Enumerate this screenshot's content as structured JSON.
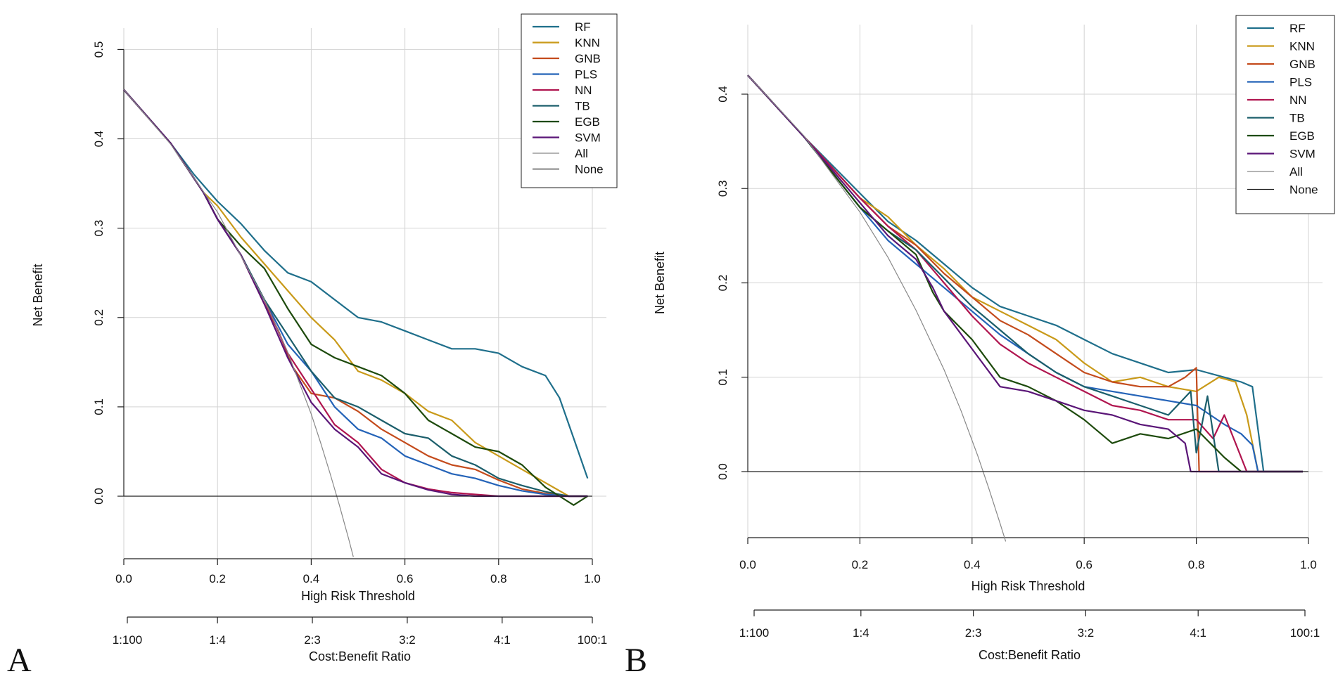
{
  "panels": [
    {
      "id": "A",
      "letter": "A"
    },
    {
      "id": "B",
      "letter": "B"
    }
  ],
  "chart_data": [
    {
      "panel": "A",
      "type": "line",
      "title": "",
      "xlabel": "High Risk Threshold",
      "ylabel": "Net Benefit",
      "xlim": [
        0,
        1
      ],
      "ylim": [
        -0.07,
        0.52
      ],
      "xticks": [
        0.0,
        0.2,
        0.4,
        0.6,
        0.8,
        1.0
      ],
      "xtick_labels": [
        "0.0",
        "0.2",
        "0.4",
        "0.6",
        "0.8",
        "1.0"
      ],
      "yticks": [
        0.0,
        0.1,
        0.2,
        0.3,
        0.4,
        0.5
      ],
      "ytick_labels": [
        "0.0",
        "0.1",
        "0.2",
        "0.3",
        "0.4",
        "0.5"
      ],
      "grid": true,
      "secondary_axis": {
        "label": "Cost:Benefit Ratio",
        "ticks": [
          0.01,
          0.2,
          0.4,
          0.6,
          0.8,
          0.99
        ],
        "tick_labels": [
          "1:100",
          "1:4",
          "2:3",
          "3:2",
          "4:1",
          "100:1"
        ]
      },
      "legend": {
        "position": "top-right",
        "entries": [
          "RF",
          "KNN",
          "GNB",
          "PLS",
          "NN",
          "TB",
          "EGB",
          "SVM",
          "All",
          "None"
        ]
      },
      "series": [
        {
          "name": "RF",
          "color": "#1f6f8b",
          "x": [
            0.0,
            0.1,
            0.15,
            0.2,
            0.25,
            0.3,
            0.35,
            0.4,
            0.45,
            0.5,
            0.55,
            0.6,
            0.65,
            0.7,
            0.75,
            0.8,
            0.85,
            0.9,
            0.93,
            0.96,
            0.99
          ],
          "y": [
            0.455,
            0.395,
            0.36,
            0.33,
            0.305,
            0.275,
            0.25,
            0.24,
            0.22,
            0.2,
            0.195,
            0.185,
            0.175,
            0.165,
            0.165,
            0.16,
            0.145,
            0.135,
            0.11,
            0.065,
            0.02
          ]
        },
        {
          "name": "KNN",
          "color": "#c99a19",
          "x": [
            0.0,
            0.1,
            0.17,
            0.2,
            0.25,
            0.3,
            0.35,
            0.4,
            0.45,
            0.5,
            0.55,
            0.6,
            0.65,
            0.7,
            0.75,
            0.8,
            0.85,
            0.9,
            0.95,
            0.99
          ],
          "y": [
            0.455,
            0.395,
            0.34,
            0.325,
            0.29,
            0.26,
            0.23,
            0.2,
            0.175,
            0.14,
            0.13,
            0.115,
            0.095,
            0.085,
            0.06,
            0.045,
            0.03,
            0.015,
            0.0,
            0.0
          ]
        },
        {
          "name": "GNB",
          "color": "#c44b1c",
          "x": [
            0.0,
            0.1,
            0.17,
            0.2,
            0.25,
            0.3,
            0.33,
            0.36,
            0.4,
            0.45,
            0.5,
            0.55,
            0.6,
            0.65,
            0.7,
            0.75,
            0.8,
            0.85,
            0.9,
            0.95,
            0.99
          ],
          "y": [
            0.455,
            0.395,
            0.34,
            0.31,
            0.27,
            0.215,
            0.185,
            0.145,
            0.115,
            0.11,
            0.095,
            0.075,
            0.06,
            0.045,
            0.035,
            0.03,
            0.018,
            0.008,
            0.003,
            0.0,
            0.0
          ]
        },
        {
          "name": "PLS",
          "color": "#2463b8",
          "x": [
            0.0,
            0.1,
            0.17,
            0.2,
            0.25,
            0.3,
            0.35,
            0.4,
            0.45,
            0.5,
            0.55,
            0.6,
            0.65,
            0.7,
            0.75,
            0.8,
            0.85,
            0.9,
            0.95,
            0.99
          ],
          "y": [
            0.455,
            0.395,
            0.34,
            0.31,
            0.27,
            0.22,
            0.17,
            0.14,
            0.1,
            0.075,
            0.065,
            0.045,
            0.035,
            0.025,
            0.02,
            0.012,
            0.006,
            0.002,
            0.0,
            0.0
          ]
        },
        {
          "name": "NN",
          "color": "#b0154f",
          "x": [
            0.0,
            0.1,
            0.17,
            0.2,
            0.25,
            0.3,
            0.35,
            0.4,
            0.45,
            0.5,
            0.55,
            0.6,
            0.65,
            0.7,
            0.75,
            0.8,
            0.85,
            0.9,
            0.95,
            0.99
          ],
          "y": [
            0.455,
            0.395,
            0.34,
            0.31,
            0.27,
            0.22,
            0.16,
            0.12,
            0.08,
            0.06,
            0.03,
            0.015,
            0.008,
            0.004,
            0.002,
            0.0,
            0.0,
            0.0,
            0.0,
            0.0
          ]
        },
        {
          "name": "TB",
          "color": "#1b5e6b",
          "x": [
            0.0,
            0.1,
            0.17,
            0.2,
            0.25,
            0.3,
            0.35,
            0.4,
            0.45,
            0.5,
            0.55,
            0.6,
            0.65,
            0.7,
            0.75,
            0.8,
            0.85,
            0.9,
            0.95,
            0.99
          ],
          "y": [
            0.455,
            0.395,
            0.34,
            0.31,
            0.27,
            0.22,
            0.18,
            0.14,
            0.11,
            0.1,
            0.085,
            0.07,
            0.065,
            0.045,
            0.035,
            0.02,
            0.012,
            0.005,
            0.0,
            0.0
          ]
        },
        {
          "name": "EGB",
          "color": "#1d4a0c",
          "x": [
            0.0,
            0.1,
            0.17,
            0.2,
            0.25,
            0.3,
            0.35,
            0.4,
            0.45,
            0.5,
            0.55,
            0.6,
            0.65,
            0.7,
            0.75,
            0.8,
            0.85,
            0.9,
            0.93,
            0.96,
            0.99
          ],
          "y": [
            0.455,
            0.395,
            0.34,
            0.31,
            0.28,
            0.255,
            0.21,
            0.17,
            0.155,
            0.145,
            0.135,
            0.115,
            0.085,
            0.07,
            0.055,
            0.05,
            0.035,
            0.01,
            0.0,
            -0.01,
            0.0
          ]
        },
        {
          "name": "SVM",
          "color": "#5a1577",
          "x": [
            0.0,
            0.1,
            0.17,
            0.2,
            0.25,
            0.3,
            0.35,
            0.4,
            0.45,
            0.5,
            0.55,
            0.6,
            0.65,
            0.7,
            0.75,
            0.8,
            0.85,
            0.9,
            0.95,
            0.99
          ],
          "y": [
            0.455,
            0.395,
            0.34,
            0.31,
            0.27,
            0.215,
            0.155,
            0.105,
            0.075,
            0.055,
            0.025,
            0.015,
            0.007,
            0.002,
            0.0,
            0.0,
            0.0,
            0.0,
            0.0,
            0.0
          ]
        },
        {
          "name": "All",
          "color": "#888888",
          "x": [
            0.0,
            0.1,
            0.2,
            0.3,
            0.35,
            0.4,
            0.42,
            0.44,
            0.46,
            0.48,
            0.49
          ],
          "y": [
            0.455,
            0.394,
            0.318,
            0.22,
            0.161,
            0.092,
            0.06,
            0.026,
            -0.01,
            -0.048,
            -0.068
          ]
        },
        {
          "name": "None",
          "color": "#222222",
          "x": [
            0.0,
            1.0
          ],
          "y": [
            0.0,
            0.0
          ]
        }
      ]
    },
    {
      "panel": "B",
      "type": "line",
      "title": "",
      "xlabel": "High Risk Threshold",
      "ylabel": "Net Benefit",
      "xlim": [
        0,
        1
      ],
      "ylim": [
        -0.07,
        0.47
      ],
      "xticks": [
        0.0,
        0.2,
        0.4,
        0.6,
        0.8,
        1.0
      ],
      "xtick_labels": [
        "0.0",
        "0.2",
        "0.4",
        "0.6",
        "0.8",
        "1.0"
      ],
      "yticks": [
        0.0,
        0.1,
        0.2,
        0.3,
        0.4
      ],
      "ytick_labels": [
        "0.0",
        "0.1",
        "0.2",
        "0.3",
        "0.4"
      ],
      "grid": true,
      "secondary_axis": {
        "label": "Cost:Benefit Ratio",
        "ticks": [
          0.01,
          0.2,
          0.4,
          0.6,
          0.8,
          0.99
        ],
        "tick_labels": [
          "1:100",
          "1:4",
          "2:3",
          "3:2",
          "4:1",
          "100:1"
        ]
      },
      "legend": {
        "position": "top-right",
        "entries": [
          "RF",
          "KNN",
          "GNB",
          "PLS",
          "NN",
          "TB",
          "EGB",
          "SVM",
          "All",
          "None"
        ]
      },
      "series": [
        {
          "name": "RF",
          "color": "#1f6f8b",
          "x": [
            0.0,
            0.1,
            0.2,
            0.25,
            0.3,
            0.35,
            0.4,
            0.45,
            0.5,
            0.55,
            0.6,
            0.65,
            0.7,
            0.75,
            0.8,
            0.85,
            0.88,
            0.9,
            0.92,
            0.99
          ],
          "y": [
            0.42,
            0.355,
            0.295,
            0.265,
            0.245,
            0.22,
            0.195,
            0.175,
            0.165,
            0.155,
            0.14,
            0.125,
            0.115,
            0.105,
            0.108,
            0.1,
            0.095,
            0.09,
            0.0,
            0.0
          ]
        },
        {
          "name": "KNN",
          "color": "#c99a19",
          "x": [
            0.0,
            0.1,
            0.2,
            0.25,
            0.3,
            0.35,
            0.4,
            0.45,
            0.5,
            0.55,
            0.6,
            0.65,
            0.7,
            0.75,
            0.8,
            0.84,
            0.87,
            0.89,
            0.91,
            0.99
          ],
          "y": [
            0.42,
            0.355,
            0.29,
            0.27,
            0.24,
            0.215,
            0.185,
            0.17,
            0.155,
            0.14,
            0.115,
            0.095,
            0.1,
            0.09,
            0.085,
            0.1,
            0.095,
            0.06,
            0.0,
            0.0
          ]
        },
        {
          "name": "GNB",
          "color": "#c44b1c",
          "x": [
            0.0,
            0.1,
            0.2,
            0.25,
            0.3,
            0.35,
            0.4,
            0.45,
            0.5,
            0.55,
            0.6,
            0.65,
            0.7,
            0.75,
            0.78,
            0.8,
            0.805,
            0.99
          ],
          "y": [
            0.42,
            0.355,
            0.29,
            0.26,
            0.24,
            0.21,
            0.185,
            0.16,
            0.145,
            0.125,
            0.105,
            0.095,
            0.09,
            0.09,
            0.1,
            0.11,
            0.0,
            0.0
          ]
        },
        {
          "name": "PLS",
          "color": "#2463b8",
          "x": [
            0.0,
            0.1,
            0.2,
            0.25,
            0.3,
            0.35,
            0.4,
            0.45,
            0.5,
            0.55,
            0.6,
            0.65,
            0.7,
            0.75,
            0.8,
            0.85,
            0.88,
            0.9,
            0.91,
            0.99
          ],
          "y": [
            0.42,
            0.355,
            0.28,
            0.245,
            0.22,
            0.195,
            0.17,
            0.145,
            0.125,
            0.105,
            0.09,
            0.085,
            0.08,
            0.075,
            0.07,
            0.05,
            0.04,
            0.028,
            0.0,
            0.0
          ]
        },
        {
          "name": "NN",
          "color": "#b0154f",
          "x": [
            0.0,
            0.1,
            0.2,
            0.25,
            0.3,
            0.35,
            0.4,
            0.45,
            0.5,
            0.55,
            0.6,
            0.65,
            0.7,
            0.75,
            0.8,
            0.83,
            0.85,
            0.87,
            0.89,
            0.99
          ],
          "y": [
            0.42,
            0.355,
            0.29,
            0.26,
            0.235,
            0.2,
            0.165,
            0.135,
            0.115,
            0.1,
            0.085,
            0.07,
            0.065,
            0.055,
            0.055,
            0.035,
            0.06,
            0.03,
            0.0,
            0.0
          ]
        },
        {
          "name": "TB",
          "color": "#1b5e6b",
          "x": [
            0.0,
            0.1,
            0.2,
            0.25,
            0.3,
            0.35,
            0.4,
            0.45,
            0.5,
            0.55,
            0.6,
            0.65,
            0.7,
            0.75,
            0.79,
            0.8,
            0.82,
            0.84,
            0.99
          ],
          "y": [
            0.42,
            0.355,
            0.28,
            0.255,
            0.235,
            0.205,
            0.175,
            0.15,
            0.125,
            0.105,
            0.09,
            0.08,
            0.07,
            0.06,
            0.085,
            0.02,
            0.08,
            0.0,
            0.0
          ]
        },
        {
          "name": "EGB",
          "color": "#1d4a0c",
          "x": [
            0.0,
            0.1,
            0.2,
            0.25,
            0.3,
            0.33,
            0.35,
            0.4,
            0.45,
            0.5,
            0.55,
            0.6,
            0.65,
            0.7,
            0.75,
            0.8,
            0.85,
            0.88,
            0.9,
            0.99
          ],
          "y": [
            0.42,
            0.355,
            0.28,
            0.255,
            0.23,
            0.19,
            0.17,
            0.14,
            0.1,
            0.09,
            0.075,
            0.055,
            0.03,
            0.04,
            0.035,
            0.045,
            0.015,
            0.0,
            0.0,
            0.0
          ]
        },
        {
          "name": "SVM",
          "color": "#5a1577",
          "x": [
            0.0,
            0.1,
            0.2,
            0.25,
            0.3,
            0.33,
            0.35,
            0.4,
            0.45,
            0.5,
            0.55,
            0.6,
            0.65,
            0.7,
            0.75,
            0.78,
            0.79,
            0.8,
            0.99
          ],
          "y": [
            0.42,
            0.355,
            0.285,
            0.25,
            0.225,
            0.195,
            0.17,
            0.13,
            0.09,
            0.085,
            0.075,
            0.065,
            0.06,
            0.05,
            0.045,
            0.03,
            0.0,
            0.0,
            0.0
          ]
        },
        {
          "name": "All",
          "color": "#888888",
          "x": [
            0.0,
            0.1,
            0.2,
            0.25,
            0.3,
            0.35,
            0.38,
            0.41,
            0.43,
            0.45,
            0.46
          ],
          "y": [
            0.42,
            0.356,
            0.275,
            0.227,
            0.171,
            0.108,
            0.065,
            0.017,
            -0.018,
            -0.055,
            -0.074
          ]
        },
        {
          "name": "None",
          "color": "#222222",
          "x": [
            0.0,
            1.0
          ],
          "y": [
            0.0,
            0.0
          ]
        }
      ]
    }
  ]
}
